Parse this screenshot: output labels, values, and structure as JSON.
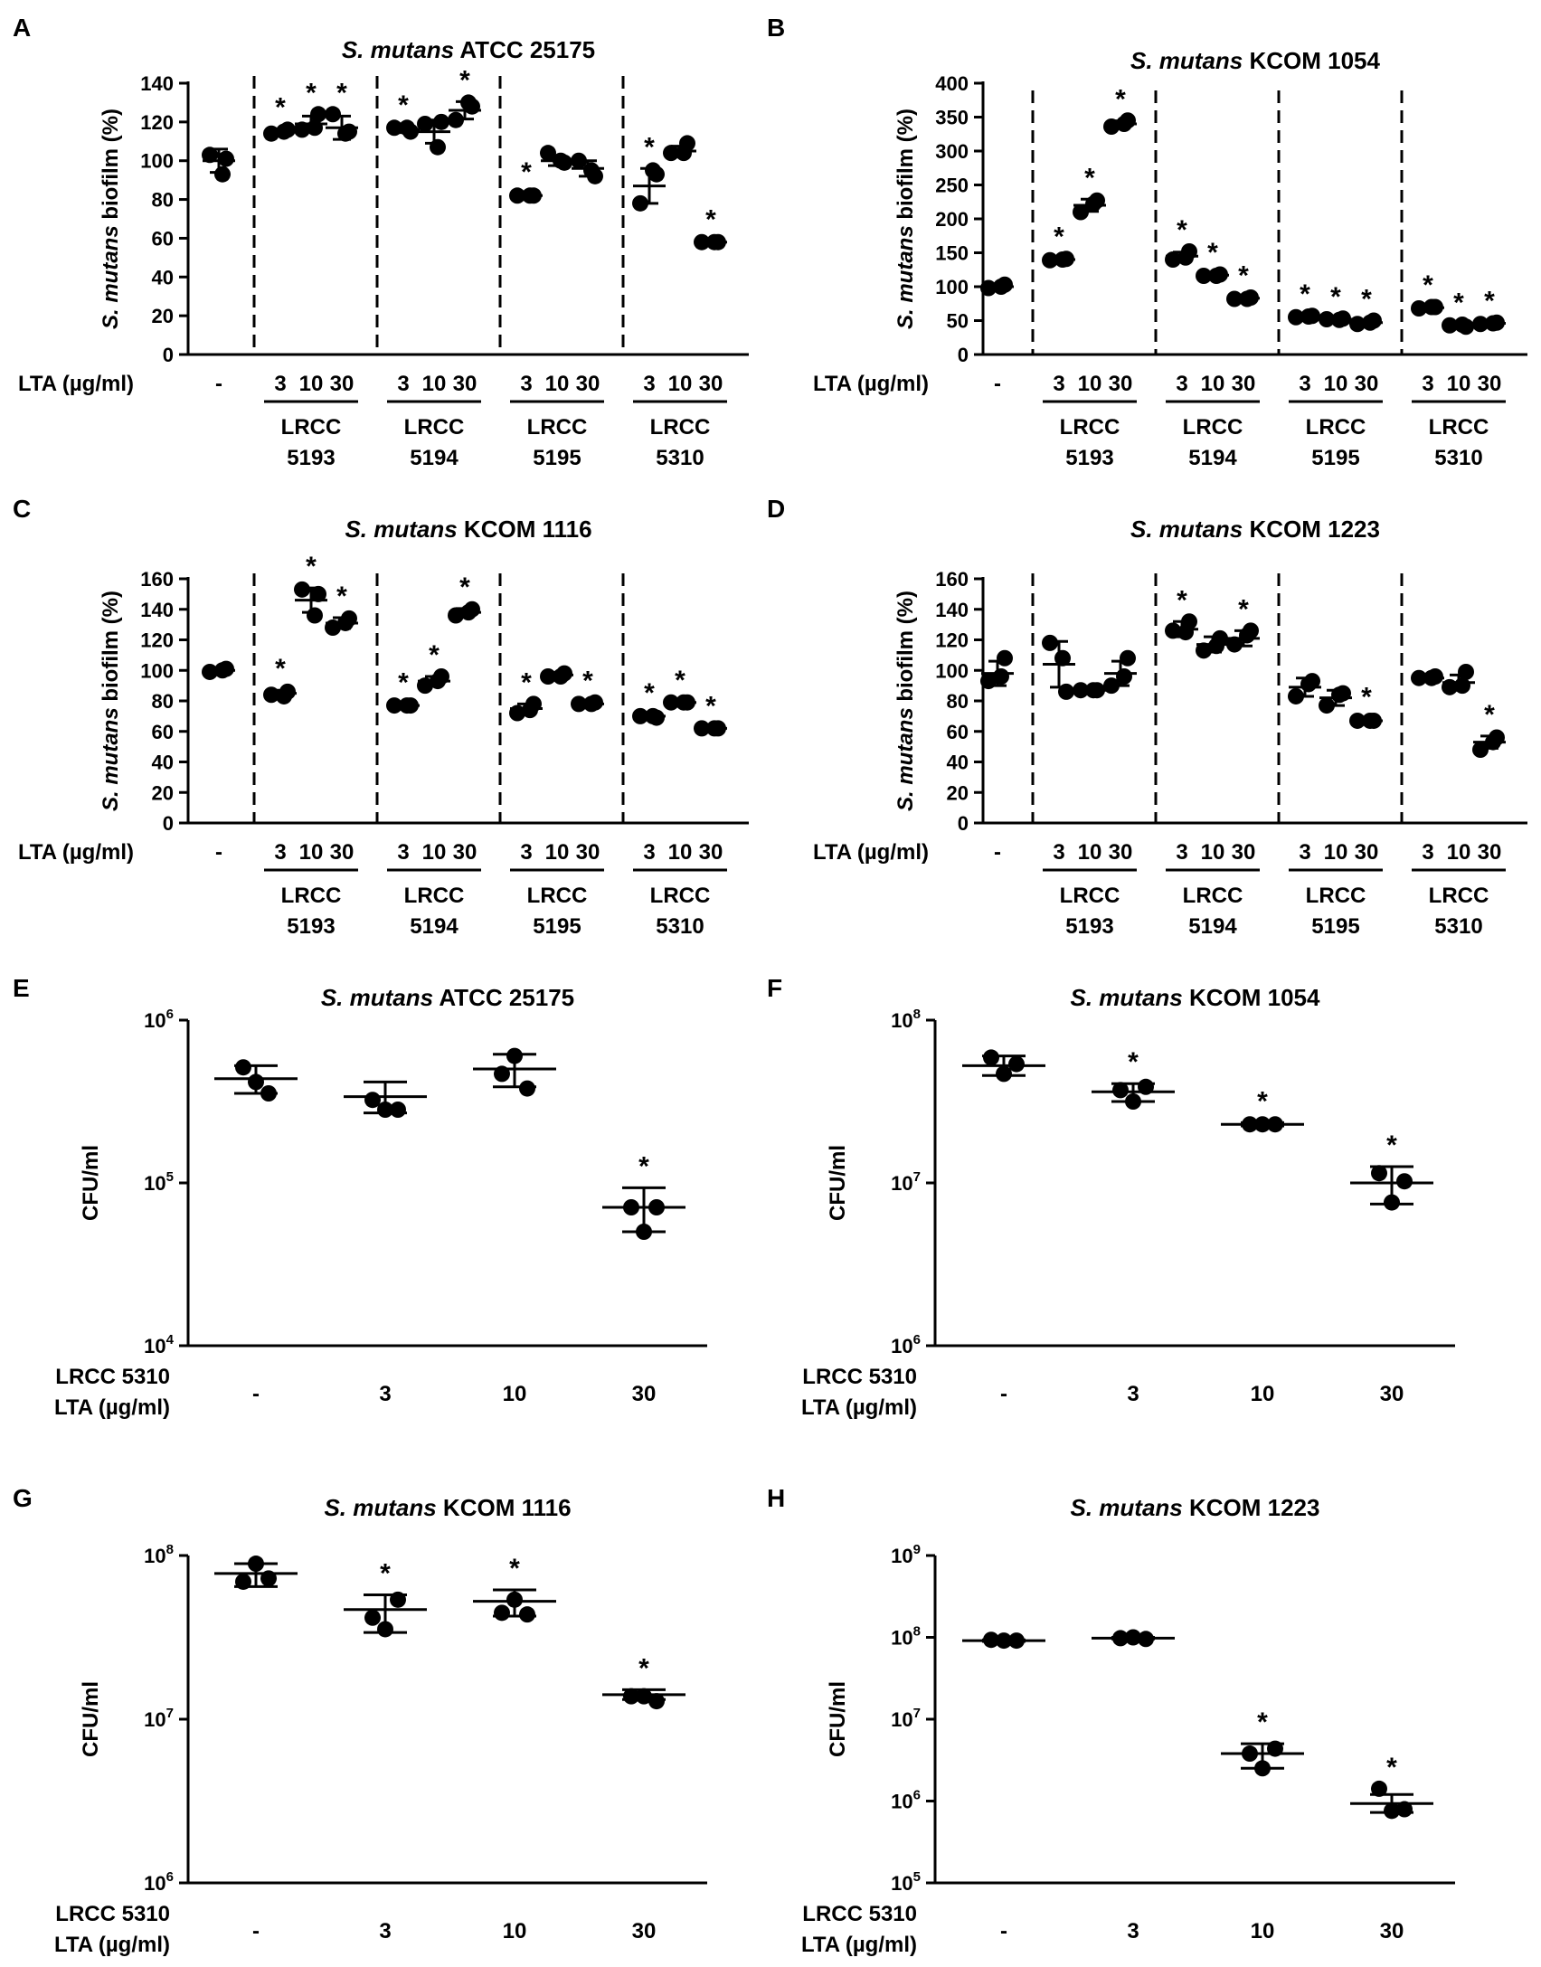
{
  "figure": {
    "panels": [
      "A",
      "B",
      "C",
      "D",
      "E",
      "F",
      "G",
      "H"
    ]
  },
  "style": {
    "ink": "#000000",
    "background": "#ffffff"
  },
  "chart_data": [
    {
      "panel": "A",
      "type": "scatter",
      "title_italic": "S. mutans",
      "title_rest": " ATCC 25175",
      "ylabel_italic": "S. mutans",
      "ylabel_rest": " biofilm (%)",
      "ylim": [
        0,
        140
      ],
      "yticks": [
        0,
        20,
        40,
        60,
        80,
        100,
        120,
        140
      ],
      "yscale": "linear",
      "xlabel": "LTA (µg/ml)",
      "control_label": "-",
      "groups": [
        {
          "label1": "LRCC",
          "label2": "5193"
        },
        {
          "label1": "LRCC",
          "label2": "5194"
        },
        {
          "label1": "LRCC",
          "label2": "5195"
        },
        {
          "label1": "LRCC",
          "label2": "5310"
        }
      ],
      "doses": [
        "3",
        "10",
        "30"
      ],
      "points": [
        {
          "pts": [
            103,
            101,
            93
          ],
          "mean": 100,
          "sd": 6,
          "star": false
        },
        {
          "pts": [
            114,
            116,
            115
          ],
          "mean": 115,
          "sd": 1.5,
          "star": true
        },
        {
          "pts": [
            116,
            124,
            117
          ],
          "mean": 119,
          "sd": 4,
          "star": true
        },
        {
          "pts": [
            124,
            115,
            114
          ],
          "mean": 117,
          "sd": 6,
          "star": true
        },
        {
          "pts": [
            117,
            115,
            117
          ],
          "mean": 116,
          "sd": 1.5,
          "star": true
        },
        {
          "pts": [
            119,
            120,
            107
          ],
          "mean": 115,
          "sd": 6,
          "star": false
        },
        {
          "pts": [
            121,
            128,
            130
          ],
          "mean": 126,
          "sd": 4.5,
          "star": true
        },
        {
          "pts": [
            82,
            82,
            82
          ],
          "mean": 82,
          "sd": 1,
          "star": true
        },
        {
          "pts": [
            104,
            99,
            100
          ],
          "mean": 100,
          "sd": 2.5,
          "star": false
        },
        {
          "pts": [
            100,
            92,
            95
          ],
          "mean": 96,
          "sd": 4,
          "star": false
        },
        {
          "pts": [
            78,
            93,
            95
          ],
          "mean": 87,
          "sd": 9,
          "star": true
        },
        {
          "pts": [
            104,
            109,
            104
          ],
          "mean": 105,
          "sd": 2.5,
          "star": false
        },
        {
          "pts": [
            58,
            58,
            58
          ],
          "mean": 58,
          "sd": 0.5,
          "star": true
        }
      ]
    },
    {
      "panel": "B",
      "type": "scatter",
      "title_italic": "S. mutans",
      "title_rest": " KCOM 1054",
      "ylabel_italic": "S. mutans",
      "ylabel_rest": " biofilm (%)",
      "ylim": [
        0,
        400
      ],
      "yticks": [
        0,
        50,
        100,
        150,
        200,
        250,
        300,
        350,
        400
      ],
      "yscale": "linear",
      "xlabel": "LTA (µg/ml)",
      "control_label": "-",
      "groups": [
        {
          "label1": "LRCC",
          "label2": "5193"
        },
        {
          "label1": "LRCC",
          "label2": "5194"
        },
        {
          "label1": "LRCC",
          "label2": "5195"
        },
        {
          "label1": "LRCC",
          "label2": "5310"
        }
      ],
      "doses": [
        "3",
        "10",
        "30"
      ],
      "points": [
        {
          "pts": [
            98,
            103,
            100
          ],
          "mean": 100,
          "sd": 3,
          "star": false
        },
        {
          "pts": [
            139,
            141,
            140
          ],
          "mean": 140,
          "sd": 2,
          "star": true
        },
        {
          "pts": [
            210,
            227,
            222
          ],
          "mean": 220,
          "sd": 9,
          "star": true
        },
        {
          "pts": [
            336,
            345,
            340
          ],
          "mean": 340,
          "sd": 4.5,
          "star": true
        },
        {
          "pts": [
            140,
            152,
            143
          ],
          "mean": 145,
          "sd": 6,
          "star": true
        },
        {
          "pts": [
            116,
            118,
            116
          ],
          "mean": 117,
          "sd": 1.5,
          "star": true
        },
        {
          "pts": [
            82,
            84,
            82
          ],
          "mean": 83,
          "sd": 1.5,
          "star": true
        },
        {
          "pts": [
            55,
            57,
            56
          ],
          "mean": 56,
          "sd": 1.5,
          "star": true
        },
        {
          "pts": [
            52,
            53,
            51
          ],
          "mean": 52,
          "sd": 1.5,
          "star": true
        },
        {
          "pts": [
            45,
            50,
            47
          ],
          "mean": 47,
          "sd": 2.5,
          "star": true
        },
        {
          "pts": [
            68,
            70,
            70
          ],
          "mean": 69,
          "sd": 1.5,
          "star": true
        },
        {
          "pts": [
            43,
            41,
            44
          ],
          "mean": 43,
          "sd": 1.5,
          "star": true
        },
        {
          "pts": [
            45,
            47,
            46
          ],
          "mean": 46,
          "sd": 1.5,
          "star": true
        }
      ]
    },
    {
      "panel": "C",
      "type": "scatter",
      "title_italic": "S. mutans",
      "title_rest": " KCOM 1116",
      "ylabel_italic": "S. mutans",
      "ylabel_rest": " biofilm (%)",
      "ylim": [
        0,
        160
      ],
      "yticks": [
        0,
        20,
        40,
        60,
        80,
        100,
        120,
        140,
        160
      ],
      "yscale": "linear",
      "xlabel": "LTA (µg/ml)",
      "control_label": "-",
      "groups": [
        {
          "label1": "LRCC",
          "label2": "5193"
        },
        {
          "label1": "LRCC",
          "label2": "5194"
        },
        {
          "label1": "LRCC",
          "label2": "5195"
        },
        {
          "label1": "LRCC",
          "label2": "5310"
        }
      ],
      "doses": [
        "3",
        "10",
        "30"
      ],
      "points": [
        {
          "pts": [
            99,
            101,
            100
          ],
          "mean": 100,
          "sd": 1.5,
          "star": false
        },
        {
          "pts": [
            84,
            86,
            83
          ],
          "mean": 85,
          "sd": 2,
          "star": true
        },
        {
          "pts": [
            153,
            150,
            136
          ],
          "mean": 146,
          "sd": 8,
          "star": true
        },
        {
          "pts": [
            128,
            134,
            131
          ],
          "mean": 131,
          "sd": 3.5,
          "star": true
        },
        {
          "pts": [
            77,
            77,
            77
          ],
          "mean": 77,
          "sd": 1,
          "star": true
        },
        {
          "pts": [
            90,
            96,
            93
          ],
          "mean": 93,
          "sd": 3,
          "star": true
        },
        {
          "pts": [
            136,
            140,
            138
          ],
          "mean": 138,
          "sd": 2.5,
          "star": true
        },
        {
          "pts": [
            72,
            78,
            74
          ],
          "mean": 75,
          "sd": 3,
          "star": true
        },
        {
          "pts": [
            96,
            98,
            96
          ],
          "mean": 97,
          "sd": 1.5,
          "star": false
        },
        {
          "pts": [
            78,
            79,
            78
          ],
          "mean": 78,
          "sd": 1,
          "star": true
        },
        {
          "pts": [
            70,
            69,
            70
          ],
          "mean": 70,
          "sd": 1,
          "star": true
        },
        {
          "pts": [
            79,
            79,
            79
          ],
          "mean": 79,
          "sd": 0.5,
          "star": true
        },
        {
          "pts": [
            62,
            62,
            62
          ],
          "mean": 62,
          "sd": 0.5,
          "star": true
        }
      ]
    },
    {
      "panel": "D",
      "type": "scatter",
      "title_italic": "S. mutans",
      "title_rest": " KCOM 1223",
      "ylabel_italic": "S. mutans",
      "ylabel_rest": " biofilm (%)",
      "ylim": [
        0,
        160
      ],
      "yticks": [
        0,
        20,
        40,
        60,
        80,
        100,
        120,
        140,
        160
      ],
      "yscale": "linear",
      "xlabel": "LTA (µg/ml)",
      "control_label": "-",
      "groups": [
        {
          "label1": "LRCC",
          "label2": "5193"
        },
        {
          "label1": "LRCC",
          "label2": "5194"
        },
        {
          "label1": "LRCC",
          "label2": "5195"
        },
        {
          "label1": "LRCC",
          "label2": "5310"
        }
      ],
      "doses": [
        "3",
        "10",
        "30"
      ],
      "points": [
        {
          "pts": [
            93,
            108,
            96
          ],
          "mean": 98,
          "sd": 8,
          "star": false
        },
        {
          "pts": [
            118,
            86,
            108
          ],
          "mean": 104,
          "sd": 15,
          "star": false
        },
        {
          "pts": [
            87,
            87,
            87
          ],
          "mean": 87,
          "sd": 1,
          "star": false
        },
        {
          "pts": [
            90,
            108,
            96
          ],
          "mean": 98,
          "sd": 8,
          "star": false
        },
        {
          "pts": [
            126,
            132,
            125
          ],
          "mean": 127,
          "sd": 5,
          "star": true
        },
        {
          "pts": [
            113,
            121,
            116
          ],
          "mean": 117,
          "sd": 5,
          "star": false
        },
        {
          "pts": [
            117,
            126,
            123
          ],
          "mean": 121,
          "sd": 5,
          "star": true
        },
        {
          "pts": [
            83,
            93,
            91
          ],
          "mean": 89,
          "sd": 6,
          "star": false
        },
        {
          "pts": [
            77,
            85,
            84
          ],
          "mean": 82,
          "sd": 5,
          "star": false
        },
        {
          "pts": [
            67,
            67,
            67
          ],
          "mean": 67,
          "sd": 1.5,
          "star": true
        },
        {
          "pts": [
            95,
            96,
            95
          ],
          "mean": 95,
          "sd": 1,
          "star": false
        },
        {
          "pts": [
            89,
            99,
            90
          ],
          "mean": 92,
          "sd": 5,
          "star": false
        },
        {
          "pts": [
            48,
            56,
            53
          ],
          "mean": 53,
          "sd": 4,
          "star": true
        }
      ]
    },
    {
      "panel": "E",
      "type": "scatter",
      "title_italic": "S. mutans",
      "title_rest": " ATCC 25175",
      "ylabel": "CFU/ml",
      "yscale": "log",
      "ylog_range": [
        4,
        6
      ],
      "ytick_exps": [
        "4",
        "5",
        "6"
      ],
      "xlabel_line1": "LRCC 5310",
      "xlabel_line2": "LTA (µg/ml)",
      "categories": [
        "-",
        "3",
        "10",
        "30"
      ],
      "points": [
        {
          "pts": [
            5.71,
            5.62,
            5.55
          ],
          "mean": 5.64,
          "lo": 5.55,
          "hi": 5.72,
          "star": false
        },
        {
          "pts": [
            5.51,
            5.45,
            5.45
          ],
          "mean": 5.53,
          "lo": 5.43,
          "hi": 5.62,
          "star": false
        },
        {
          "pts": [
            5.67,
            5.78,
            5.58
          ],
          "mean": 5.7,
          "lo": 5.59,
          "hi": 5.79,
          "star": false
        },
        {
          "pts": [
            4.85,
            4.7,
            4.85
          ],
          "mean": 4.85,
          "lo": 4.7,
          "hi": 4.97,
          "star": true
        }
      ]
    },
    {
      "panel": "F",
      "type": "scatter",
      "title_italic": "S. mutans",
      "title_rest": " KCOM 1054",
      "ylabel": "CFU/ml",
      "yscale": "log",
      "ylog_range": [
        6,
        8
      ],
      "ytick_exps": [
        "6",
        "7",
        "8"
      ],
      "xlabel_line1": "LRCC 5310",
      "xlabel_line2": "LTA (µg/ml)",
      "categories": [
        "-",
        "3",
        "10",
        "30"
      ],
      "points": [
        {
          "pts": [
            7.77,
            7.67,
            7.73
          ],
          "mean": 7.72,
          "lo": 7.66,
          "hi": 7.78,
          "star": false
        },
        {
          "pts": [
            7.57,
            7.5,
            7.59
          ],
          "mean": 7.56,
          "lo": 7.5,
          "hi": 7.61,
          "star": true
        },
        {
          "pts": [
            7.36,
            7.36,
            7.36
          ],
          "mean": 7.36,
          "lo": 7.35,
          "hi": 7.37,
          "star": true
        },
        {
          "pts": [
            7.06,
            6.88,
            7.01
          ],
          "mean": 7.0,
          "lo": 6.87,
          "hi": 7.1,
          "star": true
        }
      ]
    },
    {
      "panel": "G",
      "type": "scatter",
      "title_italic": "S. mutans",
      "title_rest": " KCOM 1116",
      "ylabel": "CFU/ml",
      "yscale": "log",
      "ylog_range": [
        6,
        8
      ],
      "ytick_exps": [
        "6",
        "7",
        "8"
      ],
      "xlabel_line1": "LRCC 5310",
      "xlabel_line2": "LTA (µg/ml)",
      "categories": [
        "-",
        "3",
        "10",
        "30"
      ],
      "points": [
        {
          "pts": [
            7.84,
            7.95,
            7.86
          ],
          "mean": 7.89,
          "lo": 7.81,
          "hi": 7.95,
          "star": false
        },
        {
          "pts": [
            7.62,
            7.55,
            7.73
          ],
          "mean": 7.67,
          "lo": 7.53,
          "hi": 7.76,
          "star": true
        },
        {
          "pts": [
            7.65,
            7.73,
            7.64
          ],
          "mean": 7.72,
          "lo": 7.63,
          "hi": 7.79,
          "star": true
        },
        {
          "pts": [
            7.14,
            7.14,
            7.11
          ],
          "mean": 7.15,
          "lo": 7.12,
          "hi": 7.18,
          "star": true
        }
      ]
    },
    {
      "panel": "H",
      "type": "scatter",
      "title_italic": "S. mutans",
      "title_rest": " KCOM 1223",
      "ylabel": "CFU/ml",
      "yscale": "log",
      "ylog_range": [
        5,
        9
      ],
      "ytick_exps": [
        "5",
        "6",
        "7",
        "8",
        "9"
      ],
      "xlabel_line1": "LRCC 5310",
      "xlabel_line2": "LTA (µg/ml)",
      "categories": [
        "-",
        "3",
        "10",
        "30"
      ],
      "points": [
        {
          "pts": [
            7.97,
            7.96,
            7.96
          ],
          "mean": 7.96,
          "lo": 7.95,
          "hi": 7.97,
          "star": false
        },
        {
          "pts": [
            7.99,
            8.0,
            7.98
          ],
          "mean": 7.99,
          "lo": 7.98,
          "hi": 8.0,
          "star": false
        },
        {
          "pts": [
            6.58,
            6.4,
            6.64
          ],
          "mean": 6.58,
          "lo": 6.4,
          "hi": 6.7,
          "star": true
        },
        {
          "pts": [
            6.15,
            5.88,
            5.9
          ],
          "mean": 5.97,
          "lo": 5.86,
          "hi": 6.08,
          "star": true
        }
      ]
    }
  ]
}
